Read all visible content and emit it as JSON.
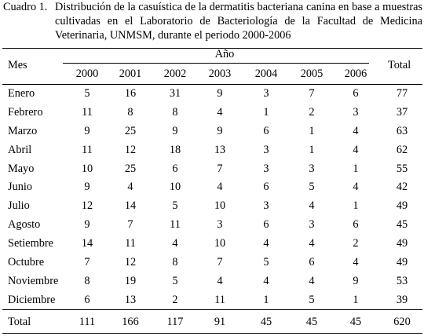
{
  "caption": {
    "label": "Cuadro 1.",
    "text": "Distribución de la casuística de la dermatitis bacteriana canina en base a muestras cultivadas en el Laboratorio de Bacteriología de la Facultad de Medicina Veterinaria, UNMSM, durante el periodo 2000-2006"
  },
  "header": {
    "mes": "Mes",
    "anio": "Año",
    "total": "Total",
    "years": [
      "2000",
      "2001",
      "2002",
      "2003",
      "2004",
      "2005",
      "2006"
    ]
  },
  "rows": [
    {
      "mes": "Enero",
      "values": [
        "5",
        "16",
        "31",
        "9",
        "3",
        "7",
        "6"
      ],
      "total": "77"
    },
    {
      "mes": "Febrero",
      "values": [
        "11",
        "8",
        "8",
        "4",
        "1",
        "2",
        "3"
      ],
      "total": "37"
    },
    {
      "mes": "Marzo",
      "values": [
        "9",
        "25",
        "9",
        "9",
        "6",
        "1",
        "4"
      ],
      "total": "63"
    },
    {
      "mes": "Abril",
      "values": [
        "11",
        "12",
        "18",
        "13",
        "3",
        "1",
        "4"
      ],
      "total": "62"
    },
    {
      "mes": "Mayo",
      "values": [
        "10",
        "25",
        "6",
        "7",
        "3",
        "3",
        "1"
      ],
      "total": "55"
    },
    {
      "mes": "Junio",
      "values": [
        "9",
        "4",
        "10",
        "4",
        "6",
        "5",
        "4"
      ],
      "total": "42"
    },
    {
      "mes": "Julio",
      "values": [
        "12",
        "14",
        "5",
        "10",
        "3",
        "4",
        "1"
      ],
      "total": "49"
    },
    {
      "mes": "Agosto",
      "values": [
        "9",
        "7",
        "11",
        "3",
        "6",
        "3",
        "6"
      ],
      "total": "45"
    },
    {
      "mes": "Setiembre",
      "values": [
        "14",
        "11",
        "4",
        "10",
        "4",
        "4",
        "2"
      ],
      "total": "49"
    },
    {
      "mes": "Octubre",
      "values": [
        "7",
        "12",
        "8",
        "7",
        "5",
        "6",
        "4"
      ],
      "total": "49"
    },
    {
      "mes": "Noviembre",
      "values": [
        "8",
        "19",
        "5",
        "4",
        "4",
        "4",
        "9"
      ],
      "total": "53"
    },
    {
      "mes": "Diciembre",
      "values": [
        "6",
        "13",
        "2",
        "11",
        "1",
        "5",
        "1"
      ],
      "total": "39"
    }
  ],
  "totals": {
    "mes": "Total",
    "values": [
      "111",
      "166",
      "117",
      "91",
      "45",
      "45",
      "45"
    ],
    "total": "620"
  }
}
